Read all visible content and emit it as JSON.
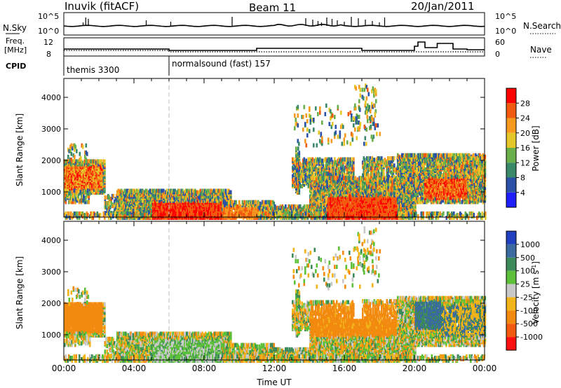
{
  "header": {
    "station": "Inuvik (fitACF)",
    "beam": "Beam 11",
    "date": "20/Jan/2011"
  },
  "top_panels": {
    "nsky_label": "N.Sky",
    "nsky_ticks": [
      "10^5",
      "10^0"
    ],
    "nsearch_label": "N.Search",
    "nsearch_ticks": [
      "10^5",
      "10^0"
    ],
    "freq_label_line1": "Freq.",
    "freq_label_line2": "[MHz]",
    "freq_ticks": [
      "12",
      "8"
    ],
    "nave_label": "Nave",
    "nave_ticks": [
      "60",
      "0"
    ],
    "cpid_label": "CPID",
    "cpid_segments": [
      {
        "name": "themis 3300",
        "start_h": 0,
        "end_h": 6
      },
      {
        "name": "normalsound (fast) 157",
        "start_h": 6,
        "end_h": 24
      }
    ]
  },
  "chart_data": [
    {
      "type": "heatmap",
      "xlabel": "",
      "ylabel": "Slant Range [km]",
      "xlim": [
        0,
        24
      ],
      "ylim": [
        200,
        4600
      ],
      "yticks": [
        "1000",
        "2000",
        "3000",
        "4000"
      ],
      "colorbar": {
        "label": "Power [dB]",
        "ticks": [
          "4",
          "8",
          "12",
          "16",
          "20",
          "24",
          "28"
        ],
        "colors": [
          "#1e1eff",
          "#2a50a8",
          "#3a8a6a",
          "#6ab04a",
          "#e6c72a",
          "#f59a1e",
          "#f25a10",
          "#ff0000"
        ]
      }
    },
    {
      "type": "heatmap",
      "xlabel": "Time UT",
      "ylabel": "Slant Range [km]",
      "xlim": [
        0,
        24
      ],
      "ylim": [
        200,
        4600
      ],
      "yticks": [
        "1000",
        "2000",
        "3000",
        "4000"
      ],
      "xticks": [
        "00:00",
        "04:00",
        "08:00",
        "12:00",
        "16:00",
        "20:00",
        "00:00"
      ],
      "colorbar": {
        "label": "Velocity [m s-1]",
        "ticks": [
          "1000",
          "500",
          "100",
          "25",
          "-25",
          "-100",
          "-500",
          "-1000"
        ],
        "colors": [
          "#2040c0",
          "#3a6aa0",
          "#3c8a5a",
          "#5cc03a",
          "#c8c8c8",
          "#f2b418",
          "#f28a10",
          "#f25a10",
          "#ff1010"
        ]
      }
    }
  ]
}
